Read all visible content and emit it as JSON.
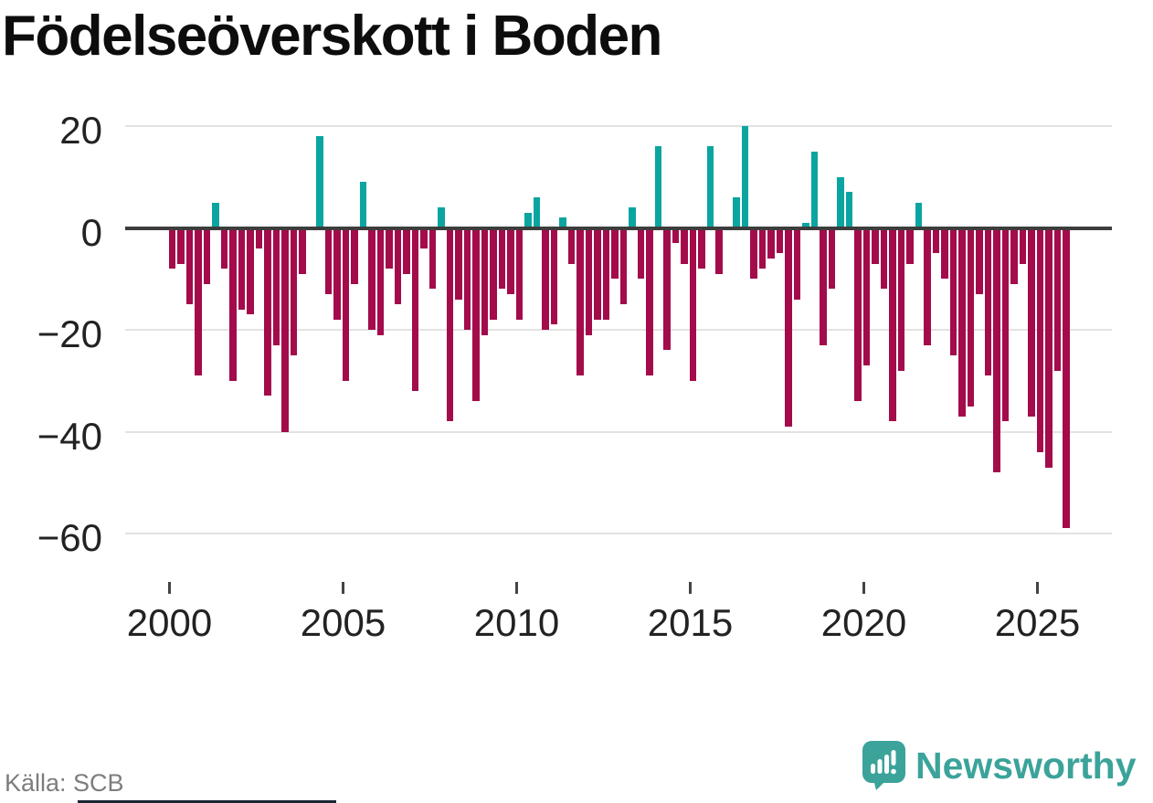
{
  "title": "Födelseöverskott i Boden",
  "source": "Källa: SCB",
  "brand": {
    "name": "Newsworthy",
    "logo_icon": "speech-bubble-bar-chart-icon",
    "color": "#3ba39a"
  },
  "colors": {
    "positive": "#0aa5a0",
    "negative": "#a30b4b",
    "zero_line": "#3d3d3d",
    "gridline": "#e3e3e3"
  },
  "chart_data": {
    "type": "bar",
    "title": "Födelseöverskott i Boden",
    "xlabel": "",
    "ylabel": "",
    "ylim": [
      -60,
      20
    ],
    "grid": "horizontal",
    "legend": "none",
    "yticks": {
      "values": [
        20,
        0,
        -20,
        -40,
        -60
      ],
      "labels": [
        "20",
        "0",
        "−20",
        "−40",
        "−60"
      ]
    },
    "xticks": {
      "years": [
        2000,
        2005,
        2010,
        2015,
        2020,
        2025
      ],
      "labels": [
        "2000",
        "2005",
        "2010",
        "2015",
        "2020",
        "2025"
      ]
    },
    "categories": [
      "2000Q1",
      "2000Q2",
      "2000Q3",
      "2000Q4",
      "2001Q1",
      "2001Q2",
      "2001Q3",
      "2001Q4",
      "2002Q1",
      "2002Q2",
      "2002Q3",
      "2002Q4",
      "2003Q1",
      "2003Q2",
      "2003Q3",
      "2003Q4",
      "2004Q1",
      "2004Q2",
      "2004Q3",
      "2004Q4",
      "2005Q1",
      "2005Q2",
      "2005Q3",
      "2005Q4",
      "2006Q1",
      "2006Q2",
      "2006Q3",
      "2006Q4",
      "2007Q1",
      "2007Q2",
      "2007Q3",
      "2007Q4",
      "2008Q1",
      "2008Q2",
      "2008Q3",
      "2008Q4",
      "2009Q1",
      "2009Q2",
      "2009Q3",
      "2009Q4",
      "2010Q1",
      "2010Q2",
      "2010Q3",
      "2010Q4",
      "2011Q1",
      "2011Q2",
      "2011Q3",
      "2011Q4",
      "2012Q1",
      "2012Q2",
      "2012Q3",
      "2012Q4",
      "2013Q1",
      "2013Q2",
      "2013Q3",
      "2013Q4",
      "2014Q1",
      "2014Q2",
      "2014Q3",
      "2014Q4",
      "2015Q1",
      "2015Q2",
      "2015Q3",
      "2015Q4",
      "2016Q1",
      "2016Q2",
      "2016Q3",
      "2016Q4",
      "2017Q1",
      "2017Q2",
      "2017Q3",
      "2017Q4",
      "2018Q1",
      "2018Q2",
      "2018Q3",
      "2018Q4",
      "2019Q1",
      "2019Q2",
      "2019Q3",
      "2019Q4",
      "2020Q1",
      "2020Q2",
      "2020Q3",
      "2020Q4",
      "2021Q1",
      "2021Q2",
      "2021Q3",
      "2021Q4",
      "2022Q1",
      "2022Q2",
      "2022Q3",
      "2022Q4",
      "2023Q1",
      "2023Q2",
      "2023Q3",
      "2023Q4",
      "2024Q1",
      "2024Q2",
      "2024Q3",
      "2024Q4",
      "2025Q1",
      "2025Q2",
      "2025Q3",
      "2025Q4"
    ],
    "values": [
      -8,
      -7,
      -15,
      -29,
      -11,
      5,
      -8,
      -30,
      -16,
      -17,
      -4,
      -33,
      -23,
      -40,
      -25,
      -9,
      0,
      18,
      -13,
      -18,
      -30,
      -11,
      9,
      -20,
      -21,
      -8,
      -15,
      -9,
      -32,
      -4,
      -12,
      4,
      -38,
      -14,
      -20,
      -34,
      -21,
      -18,
      -12,
      -13,
      -18,
      3,
      6,
      -20,
      -19,
      2,
      -7,
      -29,
      -21,
      -18,
      -18,
      -10,
      -15,
      4,
      -10,
      -29,
      16,
      -24,
      -3,
      -7,
      -30,
      -8,
      16,
      -9,
      0,
      6,
      20,
      -10,
      -8,
      -6,
      -5,
      -39,
      -14,
      1,
      15,
      -23,
      -12,
      10,
      7,
      -34,
      -27,
      -7,
      -12,
      -38,
      -28,
      -7,
      5,
      -23,
      -5,
      -10,
      -25,
      -37,
      -35,
      -13,
      -29,
      -48,
      -38,
      -11,
      -7,
      -37,
      -44,
      -47,
      -28,
      -59
    ]
  }
}
